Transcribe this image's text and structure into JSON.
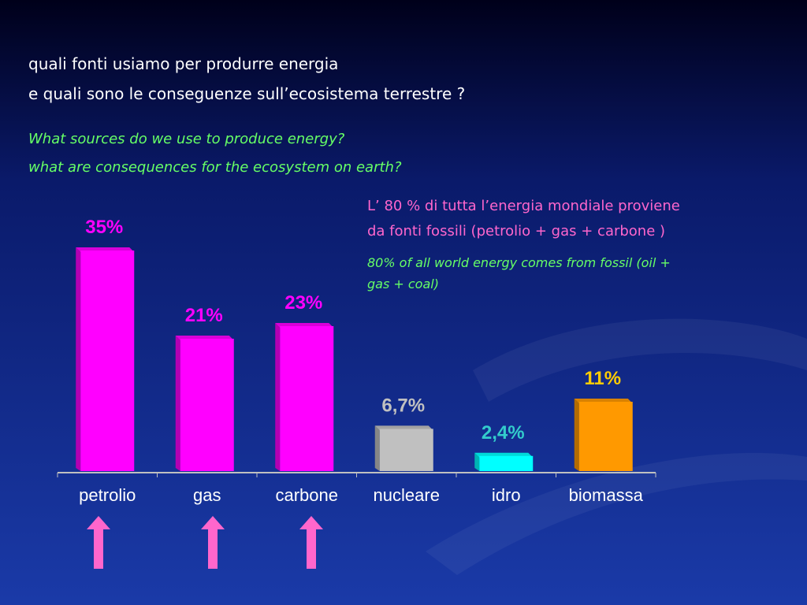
{
  "chart_data": {
    "type": "bar",
    "title": [
      "quali fonti usiamo per produrre energia",
      "e quali sono le conseguenze sull’ecosistema  terrestre ?"
    ],
    "subtitle": [
      "What sources do we use to produce energy?",
      "what are consequences for the ecosystem on earth?"
    ],
    "annotation": [
      "L’ 80 % di tutta l’energia mondiale proviene",
      "da fonti fossili  (petrolio + gas + carbone )"
    ],
    "annotation_en": [
      "80% of all world energy comes from fossil (oil +",
      "gas + coal)"
    ],
    "categories": [
      "petrolio",
      "gas",
      "carbone",
      "nucleare",
      "idro",
      "biomassa"
    ],
    "values": [
      35,
      21,
      23,
      6.7,
      2.4,
      11
    ],
    "value_labels": [
      "35%",
      "21%",
      "23%",
      "6,7%",
      "2,4%",
      "11%"
    ],
    "colors": [
      "#ff00ff",
      "#ff00ff",
      "#ff00ff",
      "#c0c0c0",
      "#00ffff",
      "#ff9900"
    ],
    "label_colors": [
      "#ff00ff",
      "#ff00ff",
      "#ff00ff",
      "#c0c0c0",
      "#33cccc",
      "#ffcc00"
    ]
  }
}
